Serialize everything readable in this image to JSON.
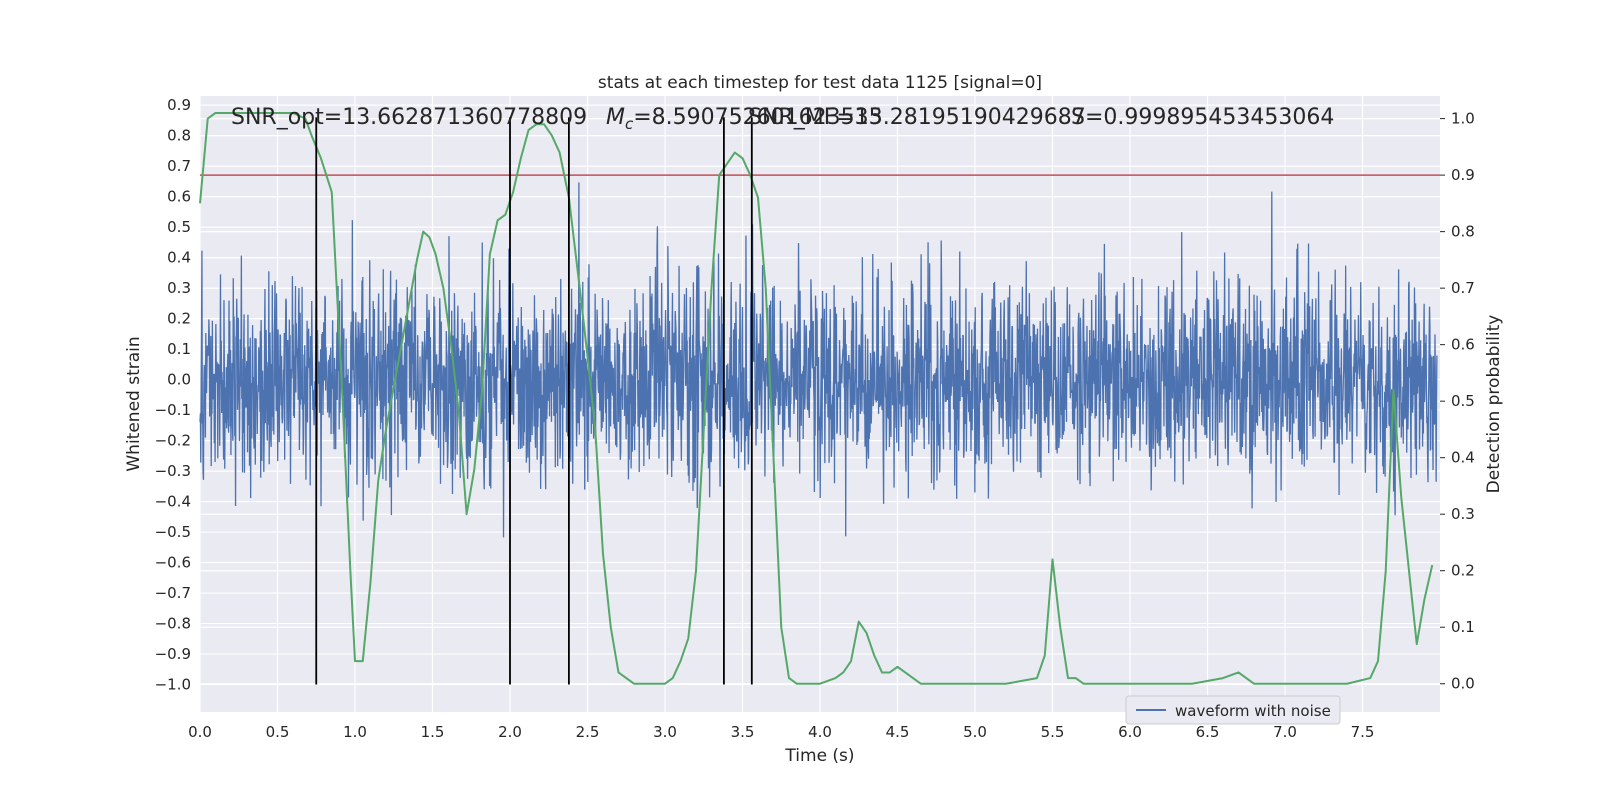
{
  "chart_data": {
    "type": "line",
    "title": "stats at each timestep for test data 1125 [signal=0]",
    "xlabel": "Time (s)",
    "ylabel_left": "Whitened strain",
    "ylabel_right": "Detection probability",
    "xlim": [
      0.0,
      8.0
    ],
    "ylim_left": [
      -1.09,
      0.93
    ],
    "ylim_right": [
      -0.05,
      1.04
    ],
    "xticks": [
      "0.0",
      "0.5",
      "1.0",
      "1.5",
      "2.0",
      "2.5",
      "3.0",
      "3.5",
      "4.0",
      "4.5",
      "5.0",
      "5.5",
      "6.0",
      "6.5",
      "7.0",
      "7.5"
    ],
    "yticks_left": [
      "0.9",
      "0.8",
      "0.7",
      "0.6",
      "0.5",
      "0.4",
      "0.3",
      "0.2",
      "0.1",
      "0.0",
      "−0.1",
      "−0.2",
      "−0.3",
      "−0.4",
      "−0.5",
      "−0.6",
      "−0.7",
      "−0.8",
      "−0.9",
      "−1.0"
    ],
    "yticks_right": [
      "0.0",
      "0.1",
      "0.2",
      "0.3",
      "0.4",
      "0.5",
      "0.6",
      "0.7",
      "0.8",
      "0.9",
      "1.0"
    ],
    "grid": true,
    "legend": {
      "placement": "lower-center-right",
      "entries": [
        "waveform with noise"
      ]
    },
    "annotations": {
      "snr_opt": "SNR_opt=13.662871360778809",
      "mc_symbol": "M",
      "mc_sub": "c",
      "mc_value": "=8.590752601623535",
      "snr_mf": "SNR_MF=13.28195190429687",
      "s_text": "S=0.999895453453064"
    },
    "threshold": {
      "value": 0.9,
      "axis": "right",
      "color": "#c44e52"
    },
    "event_lines_x": [
      0.75,
      2.0,
      2.38,
      3.38,
      3.56
    ],
    "colors": {
      "waveform": "#4c72b0",
      "probability": "#55a868",
      "events": "#000000"
    },
    "series": [
      {
        "name": "waveform with noise",
        "axis": "left",
        "render": "dense-noise",
        "x_start": 0.0,
        "x_end": 7.98,
        "sigma": 0.16,
        "envelope_x": [
          0.0,
          0.7,
          1.5,
          2.0,
          2.6,
          3.2,
          3.6,
          4.0,
          6.0,
          7.98
        ],
        "envelope_scale": [
          1.0,
          1.0,
          1.05,
          1.0,
          1.1,
          1.1,
          1.05,
          1.0,
          1.0,
          1.0
        ]
      },
      {
        "name": "",
        "axis": "right",
        "x": [
          0.0,
          0.05,
          0.1,
          0.2,
          0.3,
          0.4,
          0.5,
          0.6,
          0.68,
          0.72,
          0.78,
          0.85,
          0.92,
          0.97,
          1.0,
          1.05,
          1.1,
          1.15,
          1.2,
          1.3,
          1.4,
          1.44,
          1.48,
          1.52,
          1.57,
          1.62,
          1.67,
          1.72,
          1.77,
          1.82,
          1.87,
          1.92,
          1.97,
          2.02,
          2.07,
          2.12,
          2.17,
          2.22,
          2.27,
          2.32,
          2.38,
          2.45,
          2.5,
          2.55,
          2.6,
          2.65,
          2.7,
          2.75,
          2.8,
          2.9,
          3.0,
          3.05,
          3.1,
          3.15,
          3.2,
          3.25,
          3.3,
          3.35,
          3.4,
          3.45,
          3.5,
          3.55,
          3.6,
          3.65,
          3.7,
          3.75,
          3.8,
          3.85,
          3.9,
          4.0,
          4.1,
          4.15,
          4.2,
          4.25,
          4.3,
          4.35,
          4.4,
          4.45,
          4.5,
          4.55,
          4.6,
          4.65,
          4.7,
          4.8,
          5.0,
          5.2,
          5.4,
          5.45,
          5.5,
          5.55,
          5.6,
          5.65,
          5.7,
          5.8,
          6.0,
          6.2,
          6.4,
          6.6,
          6.7,
          6.75,
          6.8,
          6.9,
          7.0,
          7.2,
          7.4,
          7.55,
          7.6,
          7.65,
          7.7,
          7.75,
          7.8,
          7.85,
          7.9,
          7.95
        ],
        "y": [
          0.85,
          1.0,
          1.01,
          1.01,
          1.01,
          1.01,
          1.01,
          1.01,
          1.0,
          0.97,
          0.93,
          0.87,
          0.5,
          0.2,
          0.04,
          0.04,
          0.18,
          0.36,
          0.45,
          0.6,
          0.75,
          0.8,
          0.79,
          0.76,
          0.7,
          0.6,
          0.48,
          0.3,
          0.38,
          0.52,
          0.76,
          0.82,
          0.83,
          0.87,
          0.93,
          0.98,
          0.99,
          0.99,
          0.97,
          0.94,
          0.86,
          0.7,
          0.58,
          0.45,
          0.23,
          0.1,
          0.02,
          0.01,
          0.0,
          0.0,
          0.0,
          0.01,
          0.04,
          0.08,
          0.2,
          0.45,
          0.7,
          0.9,
          0.92,
          0.94,
          0.93,
          0.9,
          0.86,
          0.7,
          0.4,
          0.1,
          0.01,
          0.0,
          0.0,
          0.0,
          0.01,
          0.02,
          0.04,
          0.11,
          0.09,
          0.05,
          0.02,
          0.02,
          0.03,
          0.02,
          0.01,
          0.0,
          0.0,
          0.0,
          0.0,
          0.0,
          0.01,
          0.05,
          0.22,
          0.1,
          0.01,
          0.01,
          0.0,
          0.0,
          0.0,
          0.0,
          0.0,
          0.01,
          0.02,
          0.01,
          0.0,
          0.0,
          0.0,
          0.0,
          0.0,
          0.01,
          0.04,
          0.2,
          0.52,
          0.33,
          0.2,
          0.07,
          0.15,
          0.21
        ]
      }
    ]
  }
}
